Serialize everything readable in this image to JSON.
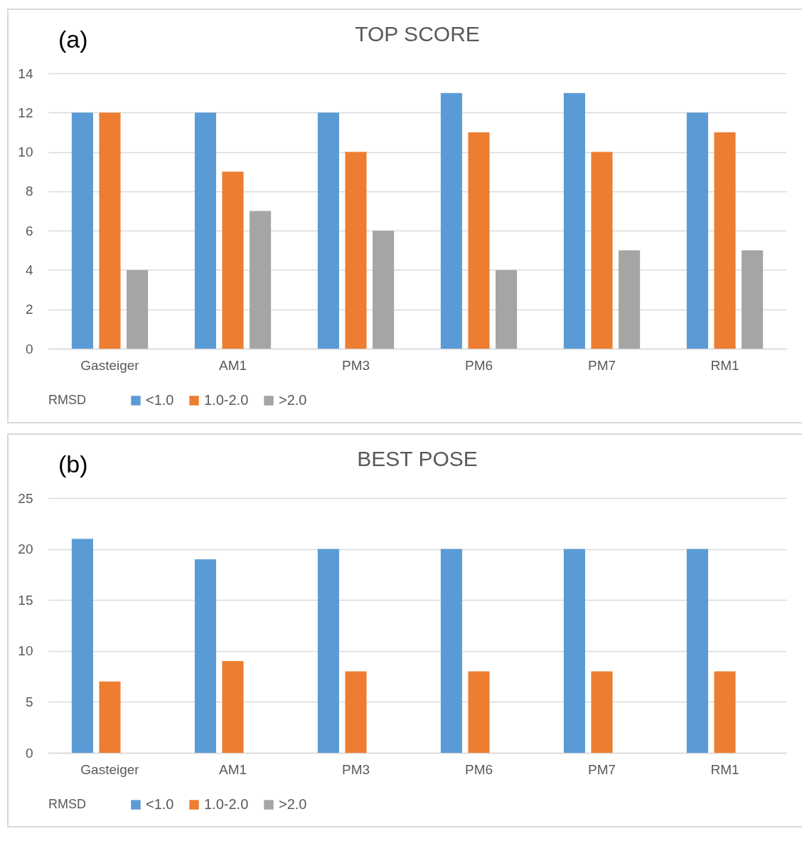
{
  "chart_data": [
    {
      "type": "bar",
      "title": "TOP SCORE",
      "annotations": [
        "(a)"
      ],
      "legend_title": "RMSD",
      "legend": "bottom",
      "grid": "y",
      "categories": [
        "Gasteiger",
        "AM1",
        "PM3",
        "PM6",
        "PM7",
        "RM1"
      ],
      "series": [
        {
          "name": "<1.0",
          "color": "#5b9bd5",
          "values": [
            12,
            12,
            12,
            13,
            13,
            12
          ]
        },
        {
          "name": "1.0-2.0",
          "color": "#ed7d31",
          "values": [
            12,
            9,
            10,
            11,
            10,
            11
          ]
        },
        {
          "name": ">2.0",
          "color": "#a5a5a5",
          "values": [
            4,
            7,
            6,
            4,
            5,
            5
          ]
        }
      ],
      "ylim": [
        0,
        14
      ],
      "yticks": [
        0,
        2,
        4,
        6,
        8,
        10,
        12,
        14
      ]
    },
    {
      "type": "bar",
      "title": "BEST POSE",
      "annotations": [
        "(b)"
      ],
      "legend_title": "RMSD",
      "legend": "bottom",
      "grid": "y",
      "categories": [
        "Gasteiger",
        "AM1",
        "PM3",
        "PM6",
        "PM7",
        "RM1"
      ],
      "series": [
        {
          "name": "<1.0",
          "color": "#5b9bd5",
          "values": [
            21,
            19,
            20,
            20,
            20,
            20
          ]
        },
        {
          "name": "1.0-2.0",
          "color": "#ed7d31",
          "values": [
            7,
            9,
            8,
            8,
            8,
            8
          ]
        },
        {
          "name": ">2.0",
          "color": "#a5a5a5",
          "values": [
            0,
            0,
            0,
            0,
            0,
            0
          ]
        }
      ],
      "ylim": [
        0,
        25
      ],
      "yticks": [
        0,
        5,
        10,
        15,
        20,
        25
      ]
    }
  ]
}
